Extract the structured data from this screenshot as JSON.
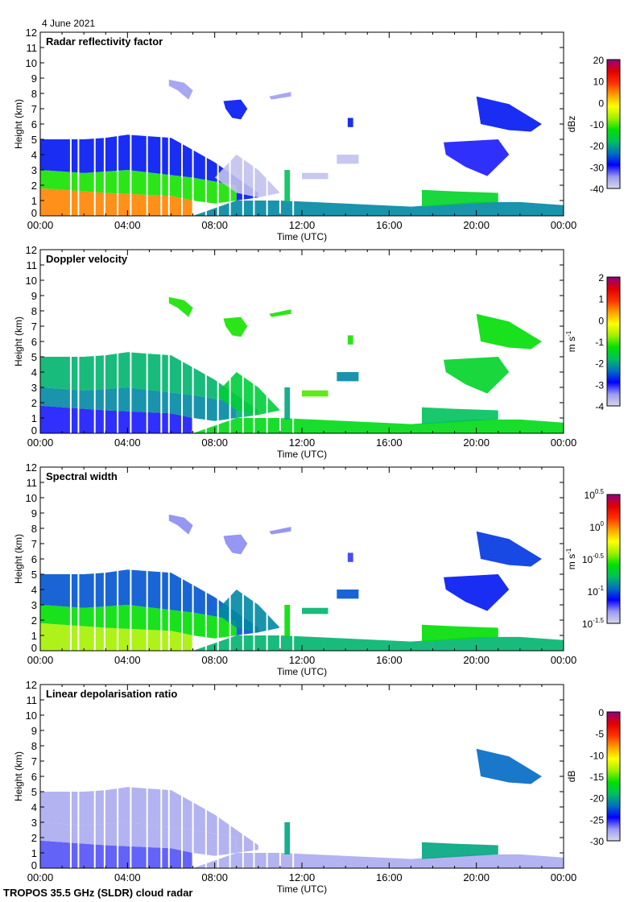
{
  "date_label": "4 June 2021",
  "footer": "TROPOS 35.5 GHz (SLDR) cloud radar",
  "chart_data": {
    "type": "heatmap",
    "x_axis": {
      "label": "Time (UTC)",
      "range": [
        0,
        24
      ],
      "ticks": [
        "00:00",
        "04:00",
        "08:00",
        "12:00",
        "16:00",
        "20:00",
        "00:00"
      ]
    },
    "y_axis": {
      "label": "Height (km)",
      "range": [
        0,
        12
      ],
      "ticks": [
        "0",
        "1",
        "2",
        "3",
        "4",
        "5",
        "6",
        "7",
        "8",
        "9",
        "10",
        "11",
        "12"
      ]
    },
    "data_gaps_utc_hours": [
      1.4,
      1.75,
      2.5,
      2.95,
      3.55,
      4.15,
      4.9,
      5.55,
      5.9,
      6.5,
      7.0,
      7.6,
      8.15,
      8.7,
      9.3,
      9.8,
      10.4,
      11.0,
      11.6
    ],
    "echo_regions": [
      [
        [
          0,
          0
        ],
        [
          7,
          0
        ],
        [
          7,
          1
        ],
        [
          6,
          1.3
        ],
        [
          3,
          1.5
        ],
        [
          0,
          1.8
        ]
      ],
      [
        [
          0,
          1.8
        ],
        [
          3,
          1.5
        ],
        [
          6,
          1.3
        ],
        [
          7,
          1
        ],
        [
          8,
          0.8
        ],
        [
          9,
          1
        ],
        [
          9,
          2
        ],
        [
          7,
          2.5
        ],
        [
          4,
          3
        ],
        [
          2,
          2.8
        ],
        [
          0,
          3
        ]
      ],
      [
        [
          0,
          3
        ],
        [
          2,
          2.8
        ],
        [
          4,
          3
        ],
        [
          7,
          2.5
        ],
        [
          9,
          2
        ],
        [
          9,
          1
        ],
        [
          10,
          1.2
        ],
        [
          10,
          1.5
        ],
        [
          9,
          2.5
        ],
        [
          8,
          3.5
        ],
        [
          7,
          4.3
        ],
        [
          6,
          5.1
        ],
        [
          5,
          5.2
        ],
        [
          4,
          5.3
        ],
        [
          3,
          5.1
        ],
        [
          2,
          5
        ],
        [
          0,
          5
        ]
      ],
      [
        [
          8,
          2.5
        ],
        [
          9,
          4
        ],
        [
          10,
          3
        ],
        [
          11,
          1.5
        ],
        [
          10,
          1.2
        ],
        [
          9,
          1.5
        ]
      ],
      [
        [
          7,
          0
        ],
        [
          24,
          0
        ],
        [
          24,
          0.7
        ],
        [
          22,
          0.9
        ],
        [
          20,
          0.9
        ],
        [
          17,
          0.6
        ],
        [
          14,
          0.8
        ],
        [
          11,
          1
        ],
        [
          9,
          1
        ]
      ],
      [
        [
          17.5,
          0.6
        ],
        [
          21,
          0.9
        ],
        [
          21,
          1.5
        ],
        [
          19,
          1.6
        ],
        [
          17.5,
          1.7
        ]
      ],
      [
        [
          5.9,
          8.9
        ],
        [
          6.6,
          8.7
        ],
        [
          7,
          8.2
        ],
        [
          6.8,
          7.6
        ],
        [
          6.3,
          8.2
        ],
        [
          5.9,
          8.5
        ]
      ],
      [
        [
          8.4,
          7.5
        ],
        [
          9.2,
          7.6
        ],
        [
          9.5,
          7.0
        ],
        [
          9.2,
          6.3
        ],
        [
          8.8,
          6.4
        ],
        [
          8.5,
          7.0
        ]
      ],
      [
        [
          10.5,
          7.8
        ],
        [
          11.5,
          8.1
        ],
        [
          11.5,
          7.8
        ],
        [
          10.6,
          7.6
        ]
      ],
      [
        [
          14.1,
          6.4
        ],
        [
          14.35,
          6.4
        ],
        [
          14.35,
          5.8
        ],
        [
          14.1,
          5.8
        ]
      ],
      [
        [
          18.5,
          4.8
        ],
        [
          21,
          5.0
        ],
        [
          21.5,
          4.0
        ],
        [
          20.5,
          2.6
        ],
        [
          19.5,
          3.2
        ],
        [
          18.6,
          4.0
        ]
      ],
      [
        [
          20,
          7.8
        ],
        [
          21.5,
          7.3
        ],
        [
          23,
          6.0
        ],
        [
          22.5,
          5.5
        ],
        [
          21.5,
          5.6
        ],
        [
          20.2,
          6.0
        ]
      ],
      [
        [
          11.2,
          3.0
        ],
        [
          11.45,
          3.0
        ],
        [
          11.45,
          0.9
        ],
        [
          11.2,
          0.9
        ]
      ],
      [
        [
          12,
          2.8
        ],
        [
          13.2,
          2.8
        ],
        [
          13.2,
          2.4
        ],
        [
          12,
          2.4
        ]
      ],
      [
        [
          13.6,
          4.0
        ],
        [
          14.6,
          4.0
        ],
        [
          14.6,
          3.4
        ],
        [
          13.6,
          3.4
        ]
      ]
    ],
    "panels": [
      {
        "title": "Radar reflectivity factor",
        "unit": "dBz",
        "unit_sup": "",
        "range": [
          -40,
          20
        ],
        "scale": "linear",
        "colorbar_ticks": [
          "20",
          "10",
          "0",
          "-10",
          "-20",
          "-30",
          "-40"
        ],
        "colorbar_tick_sup": [],
        "region_values": [
          5,
          -12,
          -28,
          -38,
          -22,
          -15,
          -35,
          -28,
          -35,
          -28,
          -30,
          -28,
          -18,
          -38,
          -38
        ]
      },
      {
        "title": "Doppler velocity",
        "unit": "m s",
        "unit_sup": "-1",
        "range": [
          -4,
          2
        ],
        "scale": "linear",
        "colorbar_ticks": [
          "2",
          "1",
          "0",
          "-1",
          "-2",
          "-3",
          "-4"
        ],
        "colorbar_tick_sup": [],
        "region_values": [
          -3,
          -2.2,
          -1.9,
          -1.6,
          -1.4,
          -1.8,
          -1.2,
          -1.2,
          -1.2,
          -1.2,
          -1.5,
          -1.3,
          -2,
          -1,
          -2.2
        ]
      },
      {
        "title": "Spectral width",
        "unit": "m s",
        "unit_sup": "-1",
        "range": [
          -1.5,
          0.5
        ],
        "scale": "log10",
        "colorbar_ticks": [
          "10",
          "10",
          "10",
          "10",
          "10"
        ],
        "colorbar_tick_sup": [
          "0.5",
          "0",
          "-0.5",
          "-1",
          "-1.5"
        ],
        "region_values": [
          -0.4,
          -0.6,
          -1.0,
          -0.9,
          -0.8,
          -0.6,
          -1.3,
          -1.3,
          -1.3,
          -1.2,
          -1.1,
          -1.05,
          -0.6,
          -0.8,
          -1.0
        ]
      },
      {
        "title": "Linear depolarisation ratio",
        "unit": "dB",
        "unit_sup": "",
        "range": [
          -30,
          0
        ],
        "scale": "linear",
        "colorbar_ticks": [
          "0",
          "-5",
          "-10",
          "-15",
          "-20",
          "-25",
          "-30"
        ],
        "colorbar_tick_sup": [],
        "region_values": [
          -26,
          -28,
          -28,
          null,
          -28,
          -20,
          null,
          null,
          null,
          null,
          null,
          -22,
          -20,
          null,
          null
        ]
      }
    ],
    "colormap": [
      "#d8d8ec",
      "#9a9af0",
      "#0000ff",
      "#0070c0",
      "#00c060",
      "#00e000",
      "#a0f000",
      "#ffff00",
      "#ffa000",
      "#ff3000",
      "#e00000",
      "#900080"
    ]
  }
}
